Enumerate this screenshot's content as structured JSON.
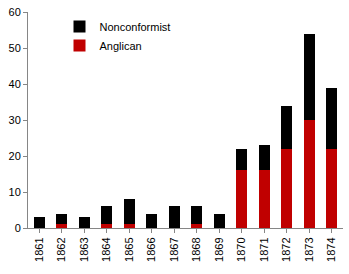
{
  "chart_data": {
    "type": "bar",
    "stacked": true,
    "categories": [
      "1861",
      "1862",
      "1863",
      "1864",
      "1865",
      "1866",
      "1867",
      "1868",
      "1869",
      "1870",
      "1871",
      "1872",
      "1873",
      "1874"
    ],
    "series": [
      {
        "name": "Anglican",
        "color": "#c00000",
        "values": [
          0,
          1,
          0,
          1,
          1,
          0,
          0,
          1,
          0,
          16,
          16,
          22,
          30,
          22
        ]
      },
      {
        "name": "Nonconformist",
        "color": "#000000",
        "values": [
          3,
          3,
          3,
          5,
          7,
          4,
          6,
          5,
          4,
          6,
          7,
          12,
          24,
          17
        ]
      }
    ],
    "ylim": [
      0,
      60
    ],
    "yticks": [
      0,
      10,
      20,
      30,
      40,
      50,
      60
    ],
    "grid": false,
    "legend": "upper left"
  }
}
